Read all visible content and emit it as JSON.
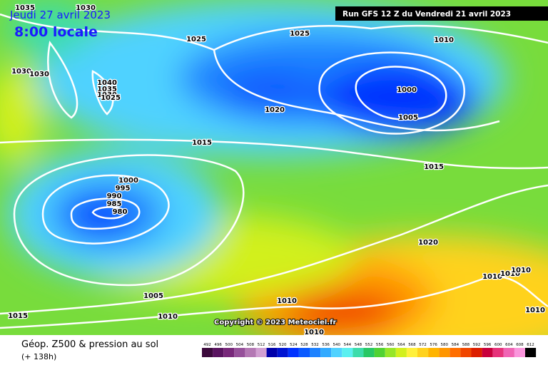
{
  "header": {
    "date": "Jeudi 27 avril 2023",
    "time": "8:00 locale",
    "run": "Run GFS 12 Z du Vendredi 21 avril 2023"
  },
  "isobar_labels": [
    "1035",
    "1030",
    "1025",
    "1025",
    "1010",
    "1030",
    "1030",
    "1040",
    "1035",
    "1030",
    "1025",
    "1020",
    "1000",
    "1005",
    "1015",
    "1015",
    "1000",
    "995",
    "990",
    "985",
    "980",
    "1020",
    "1010",
    "1010",
    "1010",
    "1005",
    "1015",
    "1010",
    "1010",
    "1010",
    "1010"
  ],
  "copyright": "Copyright © 2023 Meteociel.fr",
  "footer": {
    "title": "Géop. Z500 & pression au sol",
    "lead": "(+ 138h)"
  },
  "legend": {
    "labels": [
      492,
      496,
      500,
      504,
      508,
      512,
      516,
      520,
      524,
      528,
      532,
      536,
      540,
      544,
      548,
      552,
      556,
      560,
      564,
      568,
      572,
      576,
      580,
      584,
      588,
      592,
      596,
      600,
      604,
      608,
      612
    ],
    "colors": [
      "#3c0a3c",
      "#5a1460",
      "#78287a",
      "#96509a",
      "#b478b4",
      "#d2a0d2",
      "#0000aa",
      "#0014d2",
      "#0032ff",
      "#0a5aff",
      "#1e82ff",
      "#32aaff",
      "#50d2ff",
      "#5af0f0",
      "#3cdcaa",
      "#28c864",
      "#50d232",
      "#96e628",
      "#d2f01e",
      "#fff03c",
      "#ffd21e",
      "#ffb400",
      "#ff9600",
      "#ff6e00",
      "#f04600",
      "#dc1e00",
      "#c8003c",
      "#e6327a",
      "#f064b4",
      "#fa96dc",
      "#000000"
    ]
  }
}
